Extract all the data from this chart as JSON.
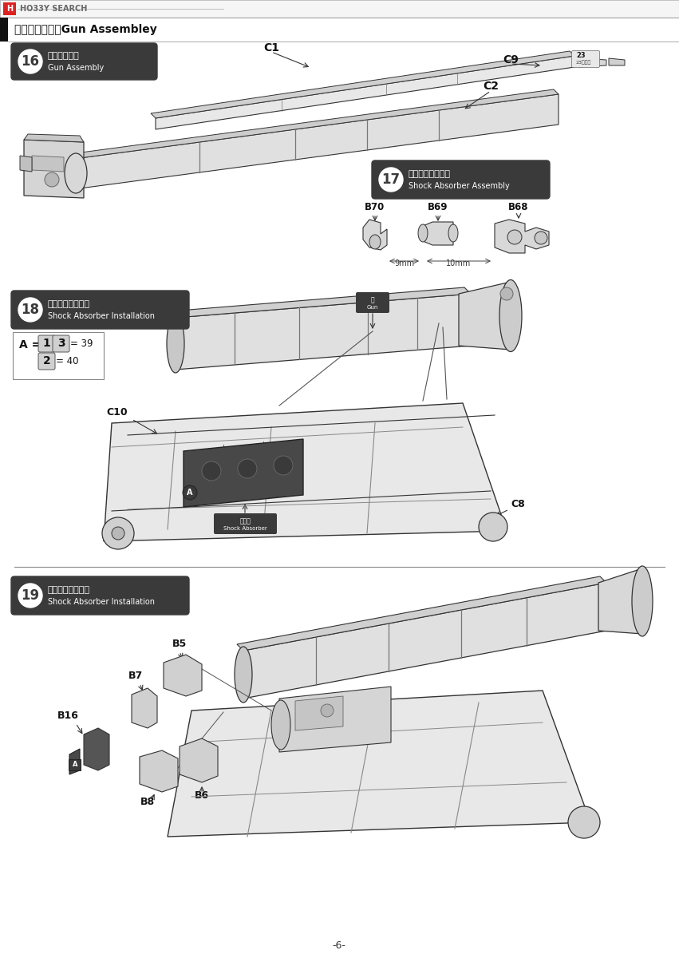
{
  "page_title_jp": "砲の組み立て",
  "page_title_en": "Gun Assembley",
  "watermark": "HO33Y SEARCH",
  "page_number": "-6-",
  "bg_color": "#ffffff",
  "step16": {
    "number": "16",
    "title_jp": "砲の組み立て",
    "title_en": "Gun Assembly",
    "parts": [
      "C1",
      "C2",
      "C9"
    ],
    "note": "23個入り"
  },
  "step17": {
    "number": "17",
    "title_jp": "緩衝器の組み立て",
    "title_en": "Shock Absorber Assembly",
    "parts": [
      "B70",
      "B69",
      "B68"
    ],
    "measurements": [
      "9mm",
      "10mm"
    ]
  },
  "step18": {
    "number": "18",
    "title_jp": "緩衝器の取り付け",
    "title_en": "Shock Absorber Installation",
    "parts": [
      "C10",
      "C8"
    ],
    "gun_label_jp": "砲",
    "gun_label_en": "Gun",
    "sa_label_jp": "緩衝器",
    "sa_label_en": "Shock Absorber"
  },
  "step19": {
    "number": "19",
    "title_jp": "緩衝器の取り付け",
    "title_en": "Shock Absorber Installation",
    "parts": [
      "B7",
      "B5",
      "B16",
      "B8",
      "B6"
    ]
  },
  "dark_box_color": "#3a3a3a",
  "line_color": "#333333",
  "light_gray": "#e8e8e8",
  "mid_gray": "#cccccc",
  "dark_gray": "#555555"
}
